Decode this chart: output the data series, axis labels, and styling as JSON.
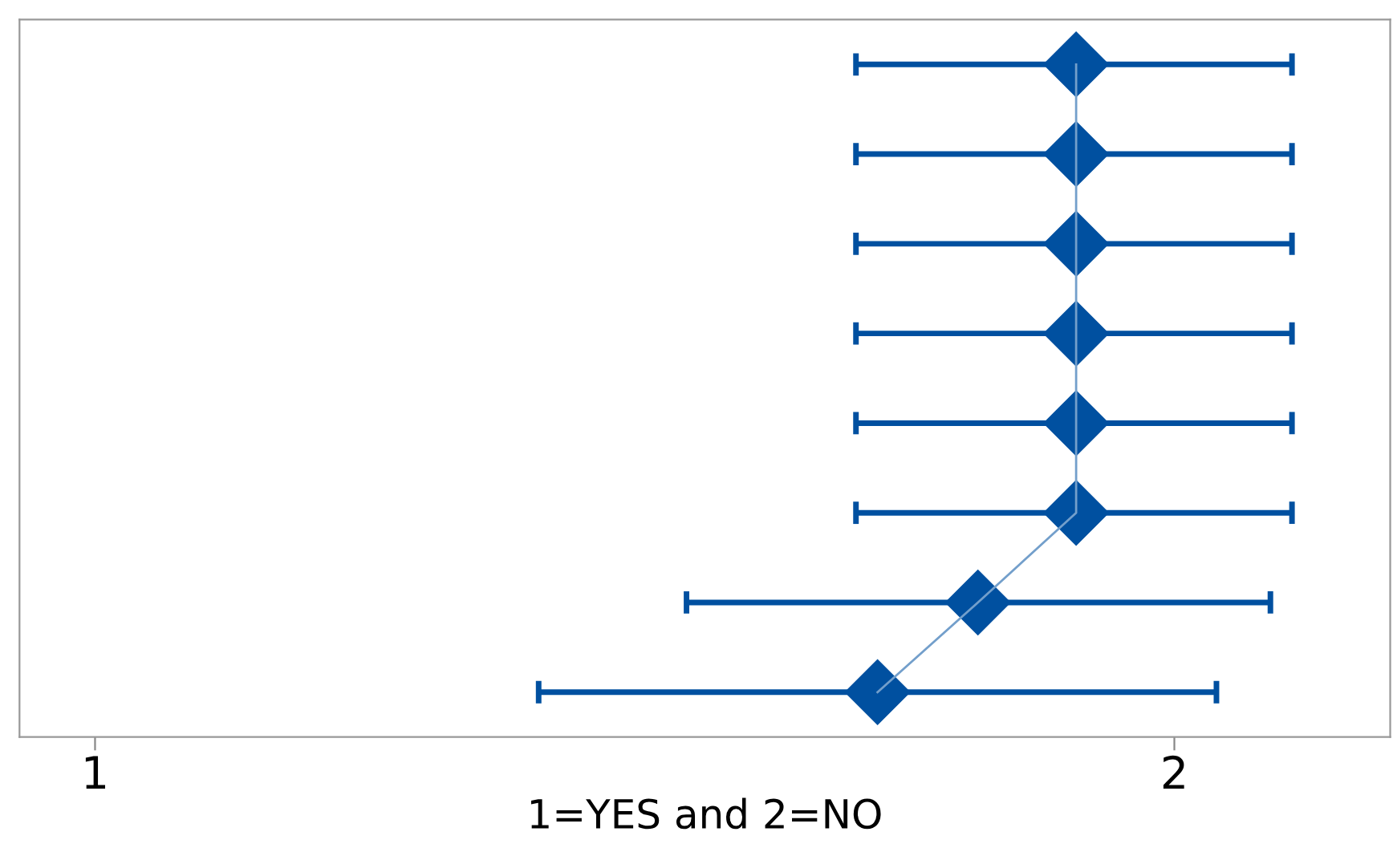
{
  "chart_data": {
    "type": "line",
    "orientation": "horizontal",
    "xlabel": "1=YES and 2=NO",
    "categories": [
      null,
      null,
      null,
      null,
      null,
      null,
      null,
      null
    ],
    "series": [
      {
        "color": "#0050a0",
        "values": [
          1.909,
          1.909,
          1.909,
          1.909,
          1.909,
          1.909,
          1.818,
          1.725
        ],
        "errors": [
          [
            1.705,
            2.109
          ],
          [
            1.705,
            2.109
          ],
          [
            1.705,
            2.109
          ],
          [
            1.705,
            2.109
          ],
          [
            1.705,
            2.109
          ],
          [
            1.705,
            2.109
          ],
          [
            1.548,
            2.089
          ],
          [
            1.411,
            2.039
          ]
        ]
      }
    ],
    "xlim": [
      0.93,
      2.2
    ],
    "xticks": [
      1,
      2
    ],
    "tick_labels": "x",
    "grid": false,
    "marker": "diamond",
    "line_style": "solid"
  }
}
